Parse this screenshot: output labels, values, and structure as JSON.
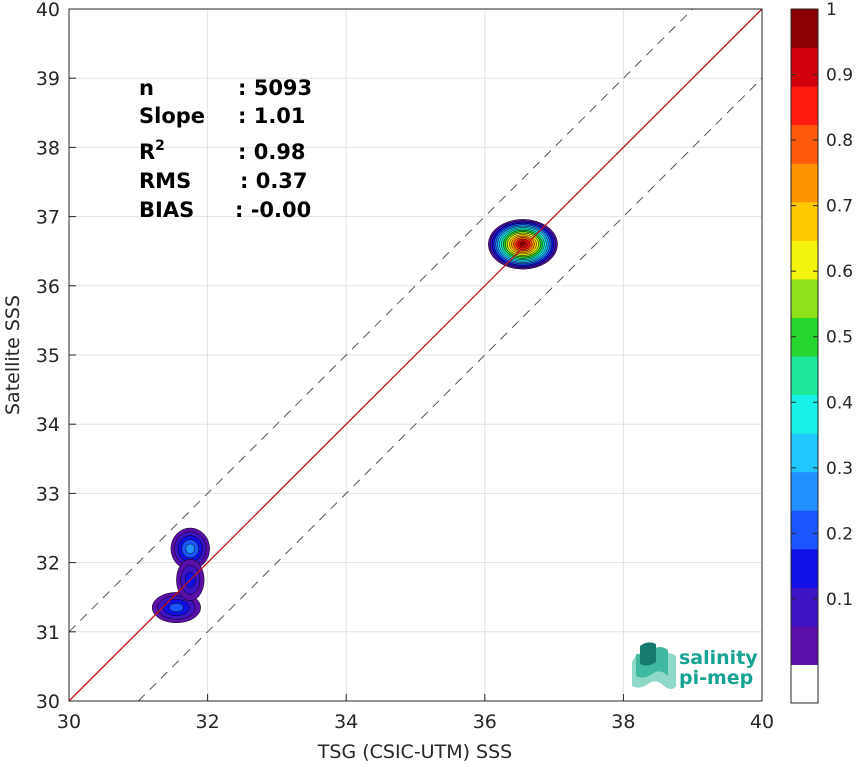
{
  "chart_data": {
    "type": "heatmap",
    "title": "",
    "xlabel": "TSG (CSIC-UTM) SSS",
    "ylabel": "Satellite SSS",
    "xlim": [
      30,
      40
    ],
    "ylim": [
      30,
      40
    ],
    "xticks": [
      30,
      32,
      34,
      36,
      38,
      40
    ],
    "yticks": [
      30,
      31,
      32,
      33,
      34,
      35,
      36,
      37,
      38,
      39,
      40
    ],
    "grid": true,
    "stats": [
      {
        "label": "n",
        "value": ": 5093"
      },
      {
        "label": "Slope",
        "value": ": 1.01"
      },
      {
        "label": "R",
        "sup": "2",
        "value": ": 0.98"
      },
      {
        "label": "RMS",
        "value": ": 0.37"
      },
      {
        "label": "BIAS",
        "value": ": -0.00"
      }
    ],
    "reference_lines": [
      {
        "kind": "one-to-one",
        "color": "#c0141a",
        "style": "solid",
        "offset": 0
      },
      {
        "kind": "offset",
        "color": "#555555",
        "style": "dashed",
        "offset": 1
      },
      {
        "kind": "offset",
        "color": "#555555",
        "style": "dashed",
        "offset": -1
      }
    ],
    "density_clusters": [
      {
        "name": "high",
        "x": 36.55,
        "y": 36.6,
        "rx": 0.5,
        "ry": 0.36,
        "peak": 1.0
      },
      {
        "name": "low-upper",
        "x": 31.75,
        "y": 32.2,
        "rx": 0.28,
        "ry": 0.3,
        "peak": 0.3
      },
      {
        "name": "low-lower",
        "x": 31.55,
        "y": 31.35,
        "rx": 0.35,
        "ry": 0.22,
        "peak": 0.22
      },
      {
        "name": "low-bridge",
        "x": 31.75,
        "y": 31.75,
        "rx": 0.2,
        "ry": 0.3,
        "peak": 0.16
      }
    ],
    "colorbar": {
      "range": [
        0,
        1
      ],
      "ticks": [
        "0.1",
        "0.2",
        "0.3",
        "0.4",
        "0.5",
        "0.6",
        "0.7",
        "0.8",
        "0.9",
        "1"
      ],
      "colors": [
        "#ffffff",
        "#5a0fa8",
        "#3d14c4",
        "#1010e6",
        "#1a55ff",
        "#2290ff",
        "#1fc6ff",
        "#17f0e6",
        "#1de89a",
        "#25d62e",
        "#8fe21a",
        "#f4f40f",
        "#ffc900",
        "#ff9400",
        "#ff5a0c",
        "#ff1c10",
        "#d2000c",
        "#8a0000"
      ]
    }
  },
  "logo": {
    "line1": "salinity",
    "line2": "pi-mep"
  }
}
